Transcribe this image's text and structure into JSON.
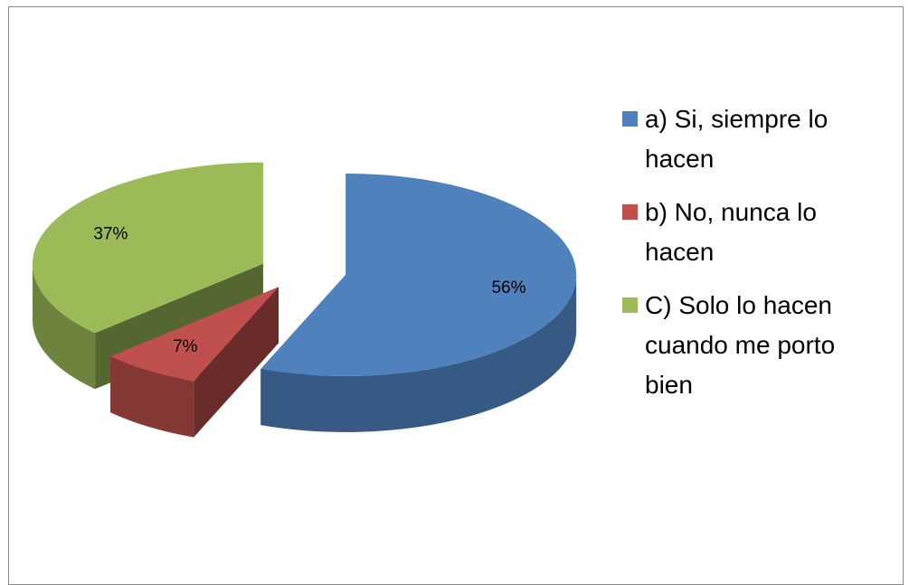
{
  "chart_data": {
    "type": "pie",
    "categories": [
      "a) Si, siempre lo hacen",
      "b) No, nunca lo hacen",
      "C) Solo lo hacen cuando me porto bien"
    ],
    "values": [
      56,
      7,
      37
    ],
    "value_labels": [
      "56%",
      "7%",
      "37%"
    ],
    "colors": [
      "#4f81bd",
      "#c0504d",
      "#9bbb59"
    ],
    "legend": "right",
    "exploded": true,
    "three_d": true
  }
}
